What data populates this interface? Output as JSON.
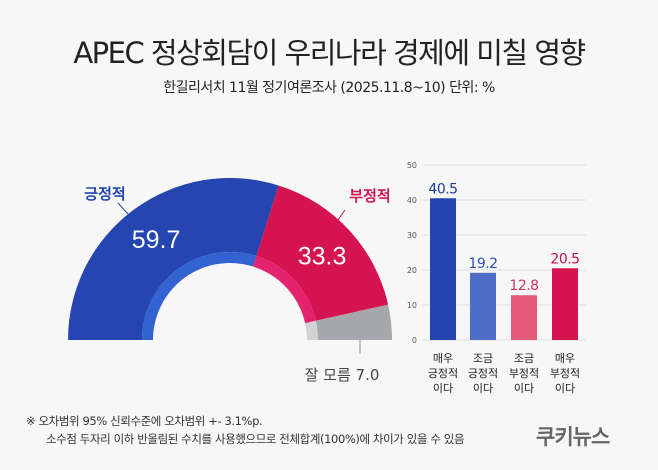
{
  "title": "APEC 정상회담이 우리나라 경제에 미칠 영향",
  "subtitle": "한길리서치 11월 정기여론조사 (2025.11.8~10) 단위: %",
  "chart_data": [
    {
      "type": "pie",
      "shape": "half-donut",
      "slices": [
        {
          "label": "긍정적",
          "value": 59.7,
          "color": "#2545b0",
          "inner_color": "#3363d0"
        },
        {
          "label": "부정적",
          "value": 33.3,
          "color": "#d51350",
          "inner_color": "#e5226e"
        },
        {
          "label": "잘 모름",
          "value": 7.0,
          "color": "#a6a7ab",
          "inner_color": "#d3d3d5"
        }
      ]
    },
    {
      "type": "bar",
      "categories": [
        "매우 긍정적 이다",
        "조금 긍정적 이다",
        "조금 부정적 이다",
        "매우 부정적 이다"
      ],
      "category_lines": [
        [
          "매우",
          "긍정적",
          "이다"
        ],
        [
          "조금",
          "긍정적",
          "이다"
        ],
        [
          "조금",
          "부정적",
          "이다"
        ],
        [
          "매우",
          "부정적",
          "이다"
        ]
      ],
      "values": [
        40.5,
        19.2,
        12.8,
        20.5
      ],
      "colors": [
        "#2444b0",
        "#4f6cc6",
        "#e45a7b",
        "#d51350"
      ],
      "label_colors": [
        "#1a3aa0",
        "#2f4fb5",
        "#d5325e",
        "#c5104a"
      ],
      "ylim": [
        0,
        50
      ],
      "yticks": [
        0,
        10,
        20,
        30,
        40,
        50
      ],
      "grid": true
    }
  ],
  "footnote": {
    "line1": "※ 오차범위 95% 신뢰수준에 오차범위 +- 3.1%p.",
    "line2": "소수점 두자리 이하 반올림된 수치를 사용했으므로 전체합계(100%)에 차이가 있을 수 있음"
  },
  "logo": "쿠키뉴스"
}
